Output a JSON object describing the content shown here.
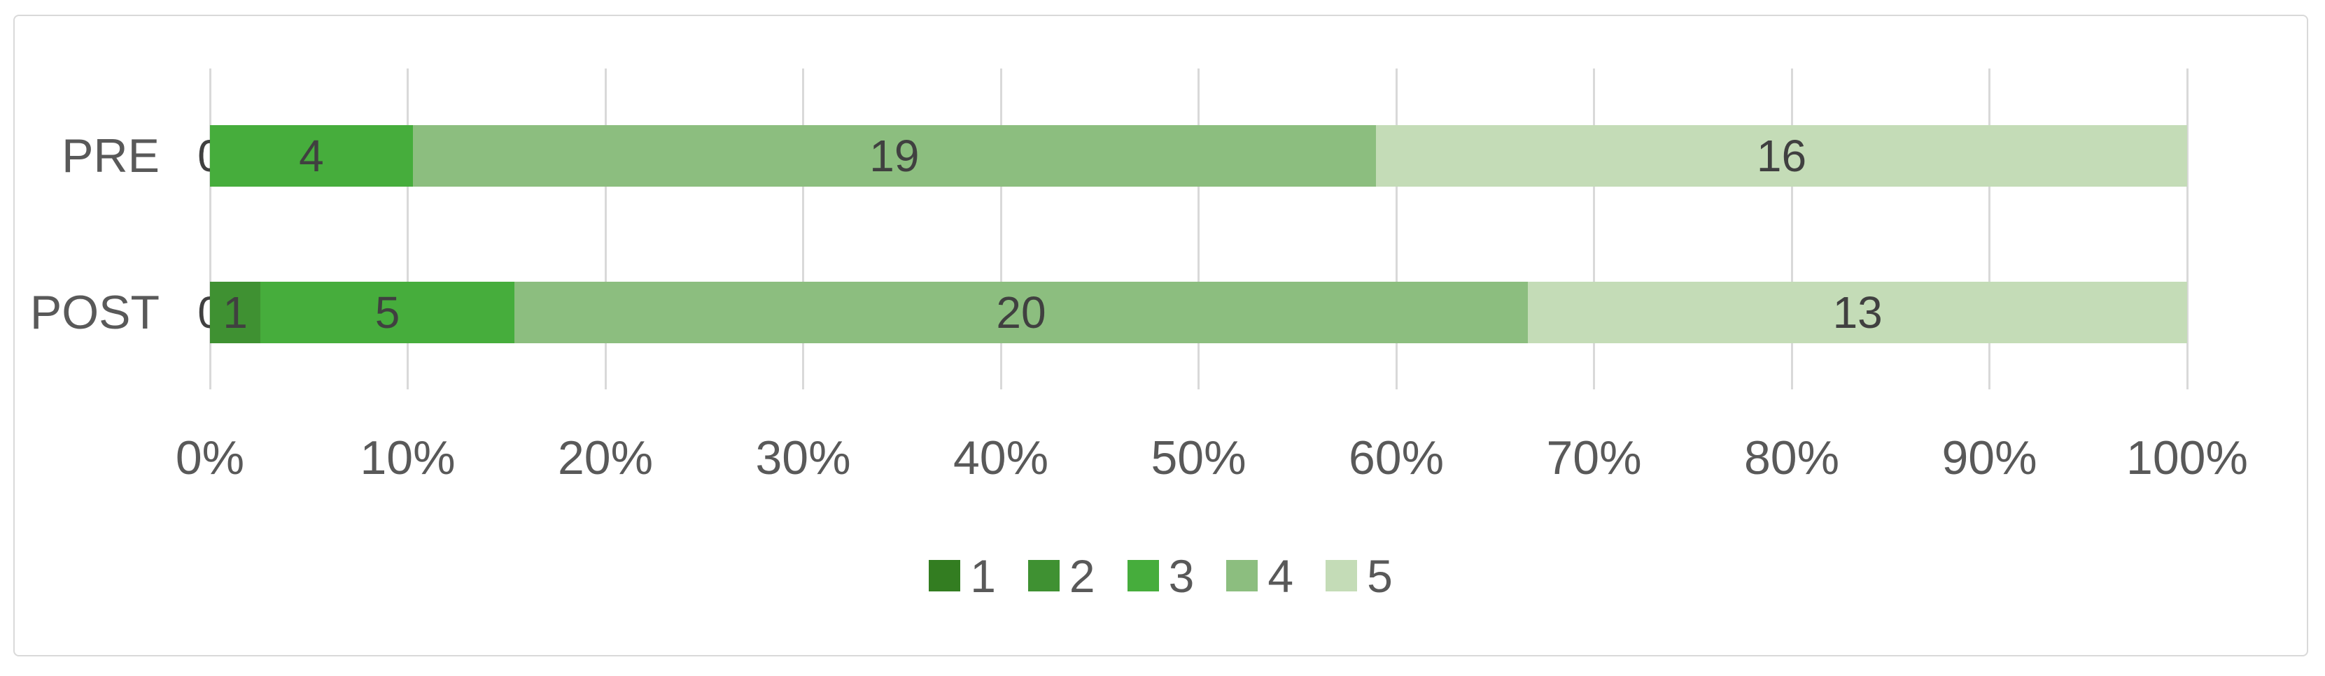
{
  "chart_data": {
    "type": "bar",
    "subtype": "stacked-100-percent",
    "orientation": "horizontal",
    "title": "",
    "xlabel": "",
    "ylabel": "",
    "categories": [
      "PRE",
      "POST"
    ],
    "series": [
      {
        "name": "1",
        "color": "#337d21",
        "values": [
          0,
          0
        ]
      },
      {
        "name": "2",
        "color": "#3f9132",
        "values": [
          0,
          1
        ]
      },
      {
        "name": "3",
        "color": "#46ad3c",
        "values": [
          4,
          5
        ]
      },
      {
        "name": "4",
        "color": "#8cbe7f",
        "values": [
          19,
          20
        ]
      },
      {
        "name": "5",
        "color": "#c4dcb7",
        "values": [
          16,
          13
        ]
      }
    ],
    "data_labels": {
      "PRE": [
        0,
        0,
        4,
        19,
        16
      ],
      "POST": [
        0,
        1,
        5,
        20,
        13
      ]
    },
    "x_ticks": [
      "0%",
      "10%",
      "20%",
      "30%",
      "40%",
      "50%",
      "60%",
      "70%",
      "80%",
      "90%",
      "100%"
    ],
    "x_range_percent": [
      0,
      100
    ],
    "grid": true,
    "legend_position": "bottom",
    "legend_labels": [
      "1",
      "2",
      "3",
      "4",
      "5"
    ]
  },
  "styles": {
    "axis_text_color": "#595959",
    "category_text_color": "#595959",
    "data_label_color": "#404040",
    "legend_text_color": "#595959",
    "gridline_color": "#d9d9d9",
    "frame_border_color": "#d9d9d9",
    "background_color": "#ffffff"
  }
}
